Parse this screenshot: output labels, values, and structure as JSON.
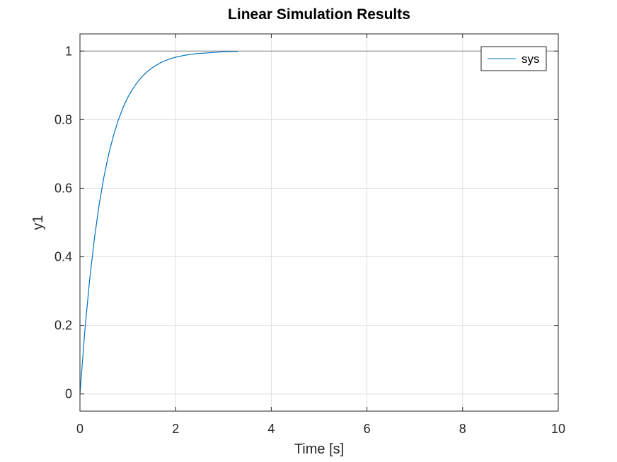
{
  "chart_data": {
    "type": "line",
    "title": "Linear Simulation Results",
    "xlabel": "Time [s]",
    "ylabel": "y1",
    "xlim": [
      0,
      10
    ],
    "ylim": [
      -0.05,
      1.05
    ],
    "xticks": [
      0,
      2,
      4,
      6,
      8,
      10
    ],
    "yticks": [
      0,
      0.2,
      0.4,
      0.6,
      0.8,
      1
    ],
    "xtick_labels": [
      "0",
      "2",
      "4",
      "6",
      "8",
      "10"
    ],
    "ytick_labels": [
      "0",
      "0.2",
      "0.4",
      "0.6",
      "0.8",
      "1"
    ],
    "grid": true,
    "legend_position": "top-right",
    "reference_lines": [
      {
        "axis": "y",
        "value": 1,
        "color": "#808080"
      }
    ],
    "series": [
      {
        "name": "sys",
        "color": "#0072BD",
        "x": [
          0,
          0.1,
          0.2,
          0.3,
          0.4,
          0.5,
          0.6,
          0.7,
          0.8,
          0.9,
          1.0,
          1.1,
          1.2,
          1.3,
          1.4,
          1.5,
          1.6,
          1.7,
          1.8,
          1.9,
          2.0,
          2.2,
          2.4,
          2.6,
          2.8,
          3.0,
          3.3
        ],
        "y": [
          0,
          0.181,
          0.33,
          0.451,
          0.551,
          0.632,
          0.699,
          0.753,
          0.798,
          0.835,
          0.865,
          0.889,
          0.909,
          0.926,
          0.939,
          0.95,
          0.959,
          0.967,
          0.973,
          0.978,
          0.982,
          0.988,
          0.992,
          0.994,
          0.996,
          0.998,
          0.999
        ]
      }
    ]
  }
}
